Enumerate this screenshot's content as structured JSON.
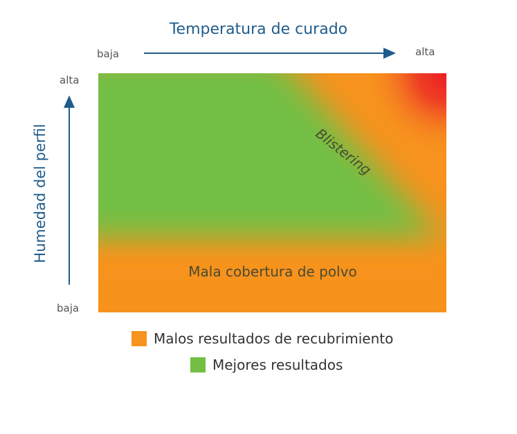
{
  "x_axis": {
    "title": "Temperatura de curado",
    "low": "baja",
    "high": "alta"
  },
  "y_axis": {
    "title": "Humedad del perfil",
    "low": "baja",
    "high": "alta"
  },
  "regions": {
    "blistering": "Blistering",
    "poor_coverage": "Mala cobertura de polvo"
  },
  "legend": [
    {
      "label": "Malos resultados de recubrimiento",
      "color": "#f7931e"
    },
    {
      "label": "Mejores resultados",
      "color": "#72bf44"
    }
  ],
  "colors": {
    "green": "#72bf44",
    "orange": "#f7931e",
    "red": "#ec1c24",
    "axis_blue": "#1f5c8c"
  }
}
